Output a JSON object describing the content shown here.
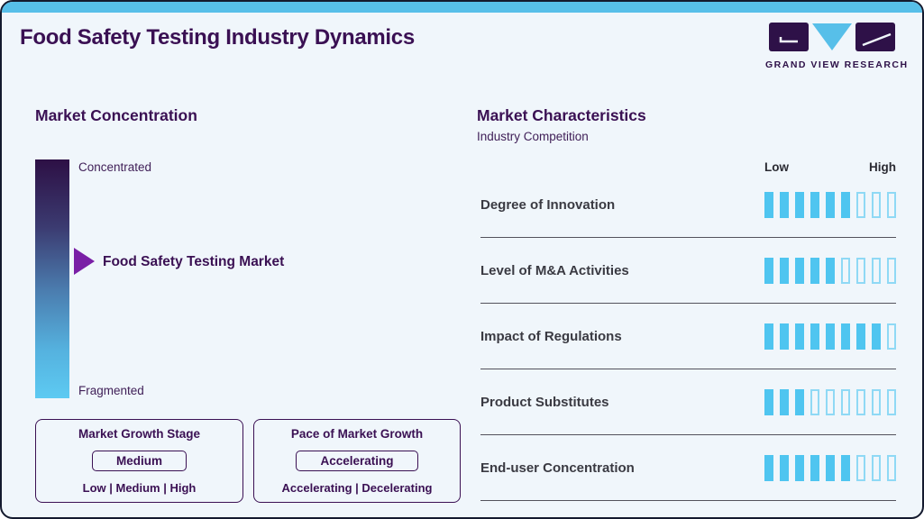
{
  "colors": {
    "top_bar": "#57BFE9",
    "card_background": "#F0F6FB",
    "heading_purple": "#3A1053",
    "arrow_purple": "#7A1FA6",
    "bar_filled_blue": "#4FC5F0",
    "bar_empty_outline": "#8FD9F5",
    "gradient_top": "#2D1045",
    "gradient_bottom": "#5DCAF2"
  },
  "header": {
    "title": "Food Safety Testing Industry Dynamics",
    "logo_text": "GRAND VIEW RESEARCH"
  },
  "market_concentration": {
    "heading": "Market Concentration",
    "scale_top_label": "Concentrated",
    "scale_bottom_label": "Fragmented",
    "pointer_label": "Food Safety Testing Market",
    "growth_stage_box": {
      "title": "Market Growth Stage",
      "selected": "Medium",
      "options": "Low | Medium | High"
    },
    "growth_pace_box": {
      "title": "Pace of Market Growth",
      "selected": "Accelerating",
      "options": "Accelerating | Decelerating"
    }
  },
  "market_characteristics": {
    "heading": "Market Characteristics",
    "subheading": "Industry Competition",
    "scale_low_label": "Low",
    "scale_high_label": "High",
    "rows": [
      {
        "label": "Degree of Innovation",
        "filled": 6,
        "total": 9
      },
      {
        "label": "Level of M&A Activities",
        "filled": 5,
        "total": 9
      },
      {
        "label": "Impact of Regulations",
        "filled": 8,
        "total": 9
      },
      {
        "label": "Product Substitutes",
        "filled": 3,
        "total": 9
      },
      {
        "label": "End-user Concentration",
        "filled": 6,
        "total": 9
      }
    ]
  },
  "chart_data": {
    "type": "bar",
    "title": "Market Characteristics — Industry Competition",
    "categories": [
      "Degree of Innovation",
      "Level of M&A Activities",
      "Impact of Regulations",
      "Product Substitutes",
      "End-user Concentration"
    ],
    "values": [
      6,
      5,
      8,
      3,
      6
    ],
    "scale": {
      "min": 0,
      "max": 9,
      "low_label": "Low",
      "high_label": "High"
    },
    "legend_position": "none",
    "notes": "Each category shows filled segments out of 9 ticks on a Low-to-High scale"
  }
}
